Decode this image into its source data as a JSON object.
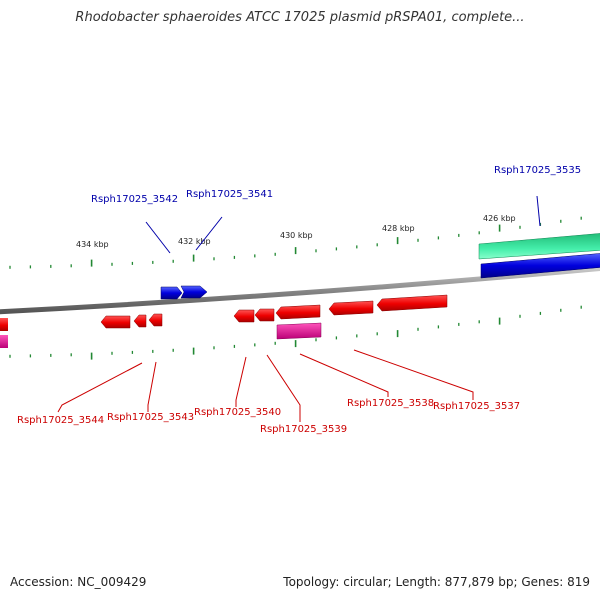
{
  "title": "Rhodobacter sphaeroides ATCC 17025 plasmid pRSPA01, complete...",
  "footer": {
    "accession_label": "Accession: NC_009429",
    "summary": "Topology: circular; Length: 877,879 bp; Genes: 819"
  },
  "colors": {
    "forward_gene": "#0000cc",
    "reverse_gene": "#dd0000",
    "reverse_label": "#cc0000",
    "forward_label": "#0000aa",
    "rna_gene": "#cc1188",
    "green_feature": "#22cc88",
    "backbone": "#888888",
    "tick": "#228833"
  },
  "scale_ticks": [
    "434 kbp",
    "432 kbp",
    "430 kbp",
    "428 kbp",
    "426 kbp"
  ],
  "forward_labels": [
    "Rsph17025_3542",
    "Rsph17025_3541",
    "Rsph17025_3535"
  ],
  "reverse_labels": [
    "Rsph17025_3544",
    "Rsph17025_3543",
    "Rsph17025_3540",
    "Rsph17025_3539",
    "Rsph17025_3538",
    "Rsph17025_3537"
  ]
}
